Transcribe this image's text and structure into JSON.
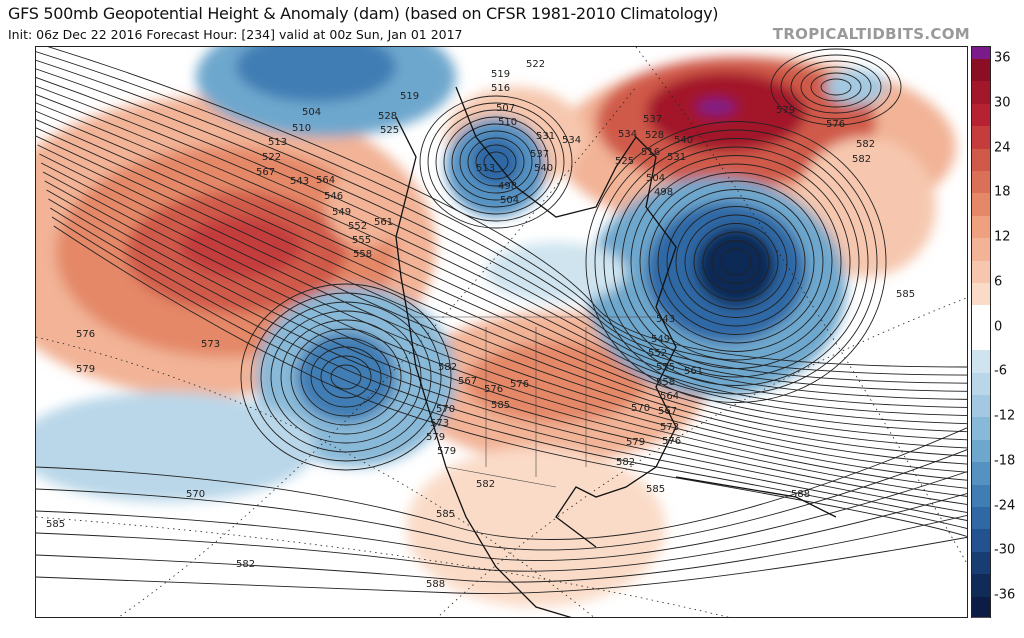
{
  "header": {
    "title": "GFS 500mb Geopotential Height & Anomaly (dam) (based on CFSR 1981-2010 Climatology)",
    "subtitle": "Init: 06z Dec 22 2016   Forecast Hour: [234]   valid at 00z Sun, Jan 01 2017",
    "watermark": "TROPICALTIDBITS.COM"
  },
  "colorbar": {
    "ticks": [
      "36",
      "30",
      "24",
      "18",
      "12",
      "6",
      "0",
      "-6",
      "-12",
      "-18",
      "-24",
      "-30",
      "-36"
    ],
    "colors": [
      "#7b1a8a",
      "#8c0e24",
      "#a3172b",
      "#b62231",
      "#c43c3c",
      "#d05a4a",
      "#db7059",
      "#e48868",
      "#eea07f",
      "#f2b396",
      "#f6c7ae",
      "#fadbc8",
      "#fff",
      "#fff",
      "#cfe4ef",
      "#b9d7e9",
      "#a2c9e1",
      "#89b9d8",
      "#6ea7cd",
      "#5592c2",
      "#3f7db4",
      "#2f68a5",
      "#22528f",
      "#183d73",
      "#102b57",
      "#0c1c45"
    ]
  },
  "map": {
    "contour_labels": [
      "504",
      "510",
      "513",
      "522",
      "525",
      "528",
      "519",
      "519",
      "516",
      "507",
      "510",
      "513",
      "498",
      "504",
      "522",
      "531",
      "537",
      "534",
      "540",
      "543",
      "546",
      "549",
      "552",
      "555",
      "558",
      "561",
      "564",
      "567",
      "570",
      "573",
      "576",
      "579",
      "582",
      "585",
      "588",
      "582",
      "579",
      "576",
      "582",
      "585",
      "504",
      "498",
      "516",
      "525",
      "534",
      "528",
      "531",
      "537",
      "540",
      "543",
      "549",
      "552",
      "555",
      "558",
      "561",
      "564",
      "567",
      "570",
      "573",
      "576",
      "579",
      "582",
      "585",
      "567",
      "570",
      "573",
      "576",
      "579",
      "582",
      "585",
      "576",
      "579",
      "582",
      "585",
      "588"
    ]
  }
}
